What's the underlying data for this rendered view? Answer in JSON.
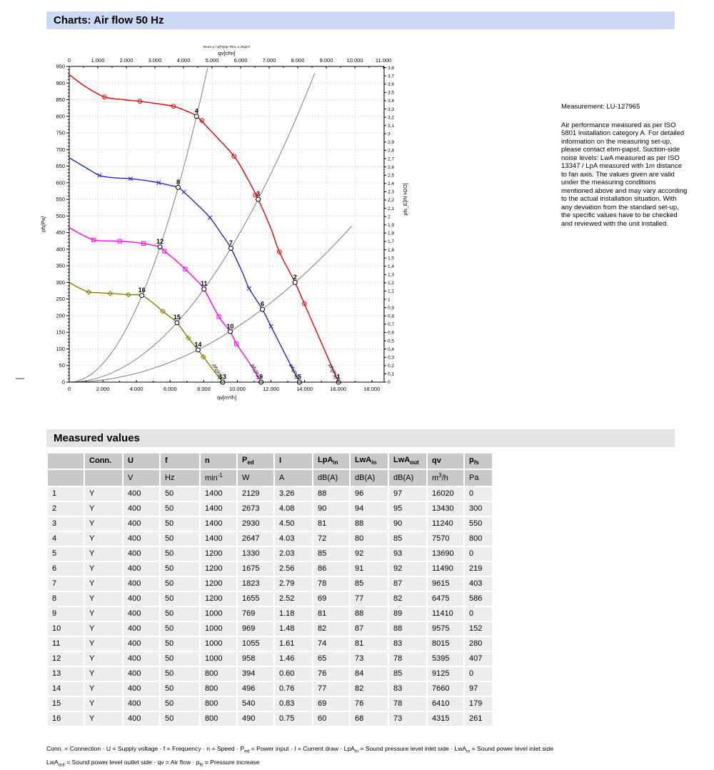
{
  "page": {
    "title": "Charts: Air flow 50 Hz",
    "section2_title": "Measured values"
  },
  "note": {
    "measurement": "Measurement: LU-127965",
    "body": "Air performance measured as per ISO 5801 Installation category A. For detailed information on the measuring set-up, please contact ebm-papst. Suction-side noise levels: LwA measured as per ISO 13347 / LpA measured with 1m distance to fan axis. The values given are valid under the measuring conditions mentioned above and may vary according to the actual installation situation. With any deviation from the standard set-up, the specific values have to be checked and reviewed with the unit installed."
  },
  "chart_data": {
    "type": "line",
    "annotation_top": "Druck p f q[Pa]/qv Rho=1.2kg/m³",
    "axes": {
      "top": {
        "label": "qv[cfm]",
        "tick_step": 1000,
        "tick_max": 11000,
        "cfm_to_m3h": 1.699
      },
      "bottom": {
        "label": "qv[m³/h]",
        "tick_step": 2000,
        "tick_max": 18000,
        "max": 18730
      },
      "left": {
        "label": "pfs[Pa]",
        "min": 0,
        "max": 950,
        "tick_step": 50,
        "minor_step": 10
      },
      "right": {
        "label": "pfs_E[IN H2O]",
        "min": 0,
        "max": 3.8,
        "tick_step": 0.1,
        "pa_per_unit": 249.089
      }
    },
    "series": [
      {
        "name": "n = 1400 min-1",
        "color": "#e60000",
        "marker": "circle-dot",
        "end_label": "pfs[Pa]",
        "points": [
          [
            0,
            925
          ],
          [
            1000,
            888
          ],
          [
            2100,
            858
          ],
          [
            3200,
            850
          ],
          [
            4200,
            845
          ],
          [
            5200,
            838
          ],
          [
            6200,
            830
          ],
          [
            7000,
            815
          ],
          [
            7570,
            800
          ],
          [
            8500,
            752
          ],
          [
            9800,
            680
          ],
          [
            10500,
            622
          ],
          [
            11240,
            550
          ],
          [
            12000,
            462
          ],
          [
            12500,
            392
          ],
          [
            13430,
            300
          ],
          [
            14000,
            234
          ],
          [
            15000,
            118
          ],
          [
            16020,
            0
          ]
        ],
        "markers": [
          [
            2100,
            858
          ],
          [
            4200,
            845
          ],
          [
            6200,
            830
          ],
          [
            7900,
            787
          ],
          [
            9800,
            680
          ],
          [
            11070,
            563
          ],
          [
            12500,
            392
          ],
          [
            13990,
            236
          ]
        ]
      },
      {
        "name": "n = 1200 min-1",
        "color": "#2424cc",
        "marker": "x",
        "end_label": "pfs[Pa]",
        "points": [
          [
            0,
            675
          ],
          [
            900,
            648
          ],
          [
            1800,
            622
          ],
          [
            2700,
            615
          ],
          [
            3650,
            612
          ],
          [
            4500,
            607
          ],
          [
            5320,
            600
          ],
          [
            6000,
            592
          ],
          [
            6475,
            586
          ],
          [
            6820,
            572
          ],
          [
            7600,
            535
          ],
          [
            8370,
            495
          ],
          [
            9000,
            450
          ],
          [
            9615,
            403
          ],
          [
            10300,
            330
          ],
          [
            10700,
            282
          ],
          [
            11490,
            219
          ],
          [
            12000,
            168
          ],
          [
            12800,
            88
          ],
          [
            13690,
            0
          ]
        ],
        "markers": [
          [
            1800,
            622
          ],
          [
            3650,
            612
          ],
          [
            5320,
            600
          ],
          [
            6820,
            572
          ],
          [
            8370,
            495
          ],
          [
            10700,
            282
          ],
          [
            12000,
            168
          ]
        ]
      },
      {
        "name": "n = 1000 min-1",
        "color": "#ff00ff",
        "marker": "square",
        "end_label": "pfs[Pa]",
        "points": [
          [
            0,
            465
          ],
          [
            700,
            445
          ],
          [
            1450,
            428
          ],
          [
            2300,
            425
          ],
          [
            3000,
            424
          ],
          [
            3800,
            421
          ],
          [
            4420,
            417
          ],
          [
            5395,
            407
          ],
          [
            5660,
            394
          ],
          [
            6300,
            368
          ],
          [
            6900,
            340
          ],
          [
            7500,
            310
          ],
          [
            8015,
            280
          ],
          [
            8900,
            197
          ],
          [
            9575,
            152
          ],
          [
            9950,
            115
          ],
          [
            10700,
            59
          ],
          [
            11410,
            0
          ]
        ],
        "markers": [
          [
            1450,
            428
          ],
          [
            3000,
            424
          ],
          [
            4420,
            417
          ],
          [
            5660,
            394
          ],
          [
            6900,
            340
          ],
          [
            8900,
            197
          ],
          [
            9950,
            115
          ]
        ]
      },
      {
        "name": "n = 800 min-1",
        "color": "#808000",
        "marker": "diamond",
        "end_label": "pfs[Pa]",
        "points": [
          [
            0,
            300
          ],
          [
            600,
            283
          ],
          [
            1160,
            271
          ],
          [
            1800,
            269
          ],
          [
            2440,
            267
          ],
          [
            3000,
            265
          ],
          [
            3510,
            263
          ],
          [
            4315,
            261
          ],
          [
            5000,
            237
          ],
          [
            5570,
            213
          ],
          [
            6000,
            196
          ],
          [
            6410,
            179
          ],
          [
            7080,
            133
          ],
          [
            7660,
            97
          ],
          [
            7980,
            76
          ],
          [
            8500,
            41
          ],
          [
            9125,
            0
          ]
        ],
        "markers": [
          [
            1160,
            271
          ],
          [
            2440,
            267
          ],
          [
            3510,
            263
          ],
          [
            5570,
            213
          ],
          [
            7080,
            133
          ],
          [
            7980,
            76
          ]
        ]
      }
    ],
    "system_curves": [
      {
        "k": 1.396e-05,
        "q_end": 8230
      },
      {
        "k": 4.36e-06,
        "q_end": 14600
      },
      {
        "k": 1.663e-06,
        "q_end": 16800
      }
    ],
    "operating_points": [
      {
        "n": 1,
        "qv": 16020,
        "pfs": 0
      },
      {
        "n": 2,
        "qv": 13430,
        "pfs": 300
      },
      {
        "n": 3,
        "qv": 11240,
        "pfs": 550
      },
      {
        "n": 4,
        "qv": 7570,
        "pfs": 800
      },
      {
        "n": 5,
        "qv": 13690,
        "pfs": 0
      },
      {
        "n": 6,
        "qv": 11490,
        "pfs": 219
      },
      {
        "n": 7,
        "qv": 9615,
        "pfs": 403
      },
      {
        "n": 8,
        "qv": 6475,
        "pfs": 586
      },
      {
        "n": 9,
        "qv": 11410,
        "pfs": 0
      },
      {
        "n": 10,
        "qv": 9575,
        "pfs": 152
      },
      {
        "n": 11,
        "qv": 8015,
        "pfs": 280
      },
      {
        "n": 12,
        "qv": 5395,
        "pfs": 407
      },
      {
        "n": 13,
        "qv": 9125,
        "pfs": 0
      },
      {
        "n": 14,
        "qv": 7660,
        "pfs": 97
      },
      {
        "n": 15,
        "qv": 6410,
        "pfs": 179
      },
      {
        "n": 16,
        "qv": 4315,
        "pfs": 261
      }
    ]
  },
  "table": {
    "columns": [
      {
        "label": [
          {
            "t": ""
          }
        ],
        "unit": [
          {
            "t": ""
          }
        ]
      },
      {
        "label": [
          {
            "t": "Conn."
          }
        ],
        "unit": [
          {
            "t": ""
          }
        ]
      },
      {
        "label": [
          {
            "t": "U"
          }
        ],
        "unit": [
          {
            "t": "V"
          }
        ]
      },
      {
        "label": [
          {
            "t": "f"
          }
        ],
        "unit": [
          {
            "t": "Hz"
          }
        ]
      },
      {
        "label": [
          {
            "t": "n"
          }
        ],
        "unit": [
          {
            "t": "min"
          },
          {
            "sup": "-1"
          }
        ]
      },
      {
        "label": [
          {
            "t": "P"
          },
          {
            "sub": "ed"
          }
        ],
        "unit": [
          {
            "t": "W"
          }
        ]
      },
      {
        "label": [
          {
            "t": "I"
          }
        ],
        "unit": [
          {
            "t": "A"
          }
        ]
      },
      {
        "label": [
          {
            "t": "LpA"
          },
          {
            "sub": "in"
          }
        ],
        "unit": [
          {
            "t": "dB(A)"
          }
        ]
      },
      {
        "label": [
          {
            "t": "LwA"
          },
          {
            "sub": "in"
          }
        ],
        "unit": [
          {
            "t": "dB(A)"
          }
        ]
      },
      {
        "label": [
          {
            "t": "LwA"
          },
          {
            "sub": "out"
          }
        ],
        "unit": [
          {
            "t": "dB(A)"
          }
        ]
      },
      {
        "label": [
          {
            "t": "qv"
          }
        ],
        "unit": [
          {
            "t": "m"
          },
          {
            "sup": "3"
          },
          {
            "t": "/h"
          }
        ]
      },
      {
        "label": [
          {
            "t": "p"
          },
          {
            "sub": "fs"
          }
        ],
        "unit": [
          {
            "t": "Pa"
          }
        ]
      }
    ],
    "rows": [
      [
        "1",
        "Y",
        "400",
        "50",
        "1400",
        "2129",
        "3.26",
        "88",
        "96",
        "97",
        "16020",
        "0"
      ],
      [
        "2",
        "Y",
        "400",
        "50",
        "1400",
        "2673",
        "4.08",
        "90",
        "94",
        "95",
        "13430",
        "300"
      ],
      [
        "3",
        "Y",
        "400",
        "50",
        "1400",
        "2930",
        "4.50",
        "81",
        "88",
        "90",
        "11240",
        "550"
      ],
      [
        "4",
        "Y",
        "400",
        "50",
        "1400",
        "2647",
        "4.03",
        "72",
        "80",
        "85",
        "7570",
        "800"
      ],
      [
        "5",
        "Y",
        "400",
        "50",
        "1200",
        "1330",
        "2.03",
        "85",
        "92",
        "93",
        "13690",
        "0"
      ],
      [
        "6",
        "Y",
        "400",
        "50",
        "1200",
        "1675",
        "2.56",
        "86",
        "91",
        "92",
        "11490",
        "219"
      ],
      [
        "7",
        "Y",
        "400",
        "50",
        "1200",
        "1823",
        "2.79",
        "78",
        "85",
        "87",
        "9615",
        "403"
      ],
      [
        "8",
        "Y",
        "400",
        "50",
        "1200",
        "1655",
        "2.52",
        "69",
        "77",
        "82",
        "6475",
        "586"
      ],
      [
        "9",
        "Y",
        "400",
        "50",
        "1000",
        "769",
        "1.18",
        "81",
        "88",
        "89",
        "11410",
        "0"
      ],
      [
        "10",
        "Y",
        "400",
        "50",
        "1000",
        "969",
        "1.48",
        "82",
        "87",
        "88",
        "9575",
        "152"
      ],
      [
        "11",
        "Y",
        "400",
        "50",
        "1000",
        "1055",
        "1.61",
        "74",
        "81",
        "83",
        "8015",
        "280"
      ],
      [
        "12",
        "Y",
        "400",
        "50",
        "1000",
        "958",
        "1.46",
        "65",
        "73",
        "78",
        "5395",
        "407"
      ],
      [
        "13",
        "Y",
        "400",
        "50",
        "800",
        "394",
        "0.60",
        "76",
        "84",
        "85",
        "9125",
        "0"
      ],
      [
        "14",
        "Y",
        "400",
        "50",
        "800",
        "496",
        "0.76",
        "77",
        "82",
        "83",
        "7660",
        "97"
      ],
      [
        "15",
        "Y",
        "400",
        "50",
        "800",
        "540",
        "0.83",
        "69",
        "76",
        "78",
        "6410",
        "179"
      ],
      [
        "16",
        "Y",
        "400",
        "50",
        "800",
        "490",
        "0.75",
        "60",
        "68",
        "73",
        "4315",
        "261"
      ]
    ]
  },
  "footnotes": [
    [
      {
        "t": "Conn. = Connection · U = Supply voltage · f = Frequency · n = Speed · P"
      },
      {
        "sub": "ed"
      },
      {
        "t": " = Power input · I = Current draw · LpA"
      },
      {
        "sub": "in"
      },
      {
        "t": " = Sound pressure level inlet side · LwA"
      },
      {
        "sub": "in"
      },
      {
        "t": " = Sound power level inlet side"
      }
    ],
    [
      {
        "t": "LwA"
      },
      {
        "sub": "out"
      },
      {
        "t": " = Sound power level outlet side · qv = Air flow · p"
      },
      {
        "sub": "fs"
      },
      {
        "t": " = Pressure increase"
      }
    ]
  ]
}
